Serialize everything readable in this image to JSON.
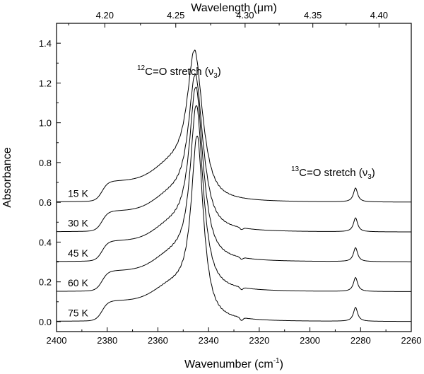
{
  "chart_data": {
    "type": "line",
    "xlabel": "Wavenumber (cm",
    "xlabel_sup": "-1",
    "xlabel_close": ")",
    "ylabel": "Absorbance",
    "top_xlabel_pre": "Wavelength (",
    "top_xlabel_mu": "μ",
    "top_xlabel_post": "m)",
    "xlim": [
      2400,
      2260
    ],
    "ylim": [
      -0.05,
      1.5
    ],
    "xticks": [
      2400,
      2380,
      2360,
      2340,
      2320,
      2300,
      2280,
      2260
    ],
    "yticks": [
      0.0,
      0.2,
      0.4,
      0.6,
      0.8,
      1.0,
      1.2,
      1.4
    ],
    "ytick_labels": [
      "0.0",
      "0.2",
      "0.4",
      "0.6",
      "0.8",
      "1.0",
      "1.2",
      "1.4"
    ],
    "top_xticks": [
      4.2,
      4.25,
      4.3,
      4.35,
      4.4
    ],
    "top_xtick_labels": [
      "4.20",
      "4.25",
      "4.30",
      "4.35",
      "4.40"
    ],
    "annotations": {
      "main_sup": "12",
      "main_text": "C=O stretch (",
      "main_nu": "ν",
      "main_sub": "3",
      "main_close": ")",
      "minor_sup": "13",
      "minor_text": "C=O stretch (",
      "minor_nu": "ν",
      "minor_sub": "3",
      "minor_close": ")"
    },
    "series": [
      {
        "name": "15 K",
        "offset": 0.6,
        "peak": 0.65,
        "peak_x": 2345.5,
        "width": 3.6,
        "peak13": 0.07,
        "notch_depth": 0.0
      },
      {
        "name": "30 K",
        "offset": 0.45,
        "peak": 0.68,
        "peak_x": 2345.2,
        "width": 3.4,
        "peak13": 0.07,
        "notch_depth": 0.01
      },
      {
        "name": "45 K",
        "offset": 0.3,
        "peak": 0.77,
        "peak_x": 2345.0,
        "width": 3.2,
        "peak13": 0.07,
        "notch_depth": 0.01
      },
      {
        "name": "60 K",
        "offset": 0.15,
        "peak": 0.83,
        "peak_x": 2344.8,
        "width": 3.0,
        "peak13": 0.07,
        "notch_depth": 0.012
      },
      {
        "name": "75 K",
        "offset": 0.0,
        "peak": 0.83,
        "peak_x": 2344.5,
        "width": 2.8,
        "peak13": 0.07,
        "notch_depth": 0.015
      }
    ]
  }
}
